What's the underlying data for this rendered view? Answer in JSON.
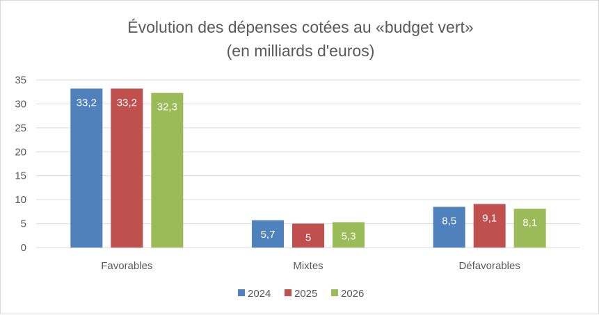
{
  "chart_data": {
    "type": "bar",
    "title": "Évolution des dépenses cotées au «budget vert»",
    "subtitle": "(en milliards d'euros)",
    "xlabel": "",
    "ylabel": "",
    "categories": [
      "Favorables",
      "Mixtes",
      "Défavorables"
    ],
    "series": [
      {
        "name": "2024",
        "color": "#4f81bd",
        "values": [
          33.2,
          5.7,
          8.5
        ],
        "labels": [
          "33,2",
          "5,7",
          "8,5"
        ]
      },
      {
        "name": "2025",
        "color": "#c0504d",
        "values": [
          33.2,
          5,
          9.1
        ],
        "labels": [
          "33,2",
          "5",
          "9,1"
        ]
      },
      {
        "name": "2026",
        "color": "#9bbb59",
        "values": [
          32.3,
          5.3,
          8.1
        ],
        "labels": [
          "32,3",
          "5,3",
          "8,1"
        ]
      }
    ],
    "ylim": [
      0,
      35
    ],
    "yticks": [
      0,
      5,
      10,
      15,
      20,
      25,
      30,
      35
    ],
    "ytick_labels": [
      "0",
      "5",
      "10",
      "15",
      "20",
      "25",
      "30",
      "35"
    ],
    "grid": true,
    "legend_position": "bottom"
  }
}
